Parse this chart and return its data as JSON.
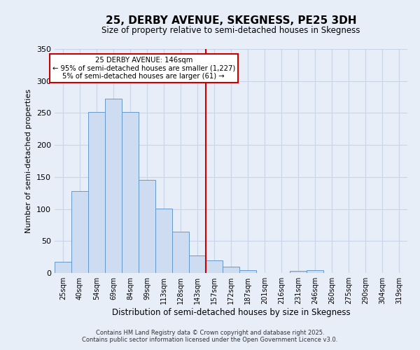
{
  "title": "25, DERBY AVENUE, SKEGNESS, PE25 3DH",
  "subtitle": "Size of property relative to semi-detached houses in Skegness",
  "xlabel": "Distribution of semi-detached houses by size in Skegness",
  "ylabel": "Number of semi-detached properties",
  "bar_labels": [
    "25sqm",
    "40sqm",
    "54sqm",
    "69sqm",
    "84sqm",
    "99sqm",
    "113sqm",
    "128sqm",
    "143sqm",
    "157sqm",
    "172sqm",
    "187sqm",
    "201sqm",
    "216sqm",
    "231sqm",
    "246sqm",
    "260sqm",
    "275sqm",
    "290sqm",
    "304sqm",
    "319sqm"
  ],
  "bar_values": [
    18,
    128,
    252,
    272,
    252,
    145,
    101,
    65,
    27,
    20,
    10,
    4,
    0,
    0,
    3,
    4,
    0,
    0,
    0,
    0,
    0
  ],
  "bar_color": "#cddcf0",
  "bar_edge_color": "#6699cc",
  "vline_x": 8.5,
  "vline_color": "#cc0000",
  "ylim": [
    0,
    350
  ],
  "yticks": [
    0,
    50,
    100,
    150,
    200,
    250,
    300,
    350
  ],
  "annotation_title": "25 DERBY AVENUE: 146sqm",
  "annotation_line1": "← 95% of semi-detached houses are smaller (1,227)",
  "annotation_line2": "5% of semi-detached houses are larger (61) →",
  "annotation_box_color": "#ffffff",
  "annotation_box_edge": "#cc0000",
  "footer1": "Contains HM Land Registry data © Crown copyright and database right 2025.",
  "footer2": "Contains public sector information licensed under the Open Government Licence v3.0.",
  "background_color": "#e8eef8",
  "grid_color": "#c8d4e8"
}
